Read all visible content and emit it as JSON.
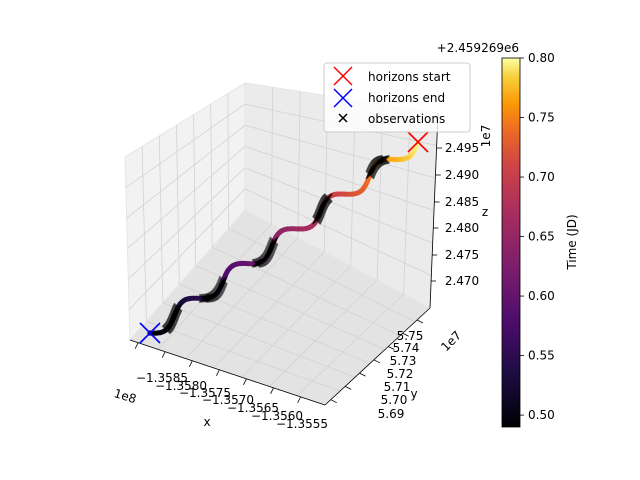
{
  "chart_data": {
    "type": "scatter",
    "projection": "3d",
    "xlabel": "x",
    "ylabel": "y",
    "zlabel": "z",
    "x_offset_text": "1e8",
    "y_offset_text": "1e7",
    "z_offset_text": "1e7",
    "top_offset_text": "+2.459269e6",
    "x_ticks": [
      "−1.3585",
      "−1.3580",
      "−1.3575",
      "−1.3570",
      "−1.3565",
      "−1.3560",
      "−1.3555"
    ],
    "y_ticks": [
      "5.69",
      "5.70",
      "5.71",
      "5.72",
      "5.73",
      "5.74",
      "5.75"
    ],
    "z_ticks": [
      "2.470",
      "2.475",
      "2.480",
      "2.485",
      "2.490",
      "2.495"
    ],
    "grid": true,
    "legend": {
      "placement": "top-right",
      "entries": [
        {
          "label": "horizons start",
          "marker": "x",
          "color": "#ff0000"
        },
        {
          "label": "horizons end",
          "marker": "x",
          "color": "#0000ff"
        },
        {
          "label": "observations",
          "marker": "x",
          "color": "#000000"
        }
      ]
    },
    "colorbar": {
      "label": "Time (JD)",
      "colormap": "inferno",
      "min": 0.49,
      "max": 0.8,
      "ticks": [
        "0.50",
        "0.55",
        "0.60",
        "0.65",
        "0.70",
        "0.75",
        "0.80"
      ]
    },
    "horizons_start": {
      "t": 0.8
    },
    "horizons_end": {
      "t": 0.49
    },
    "observation_arcs": [
      {
        "t_start": 0.765,
        "t_end": 0.745
      },
      {
        "t_start": 0.7,
        "t_end": 0.68
      },
      {
        "t_start": 0.635,
        "t_end": 0.61
      },
      {
        "t_start": 0.575,
        "t_end": 0.55
      },
      {
        "t_start": 0.525,
        "t_end": 0.505
      }
    ]
  }
}
